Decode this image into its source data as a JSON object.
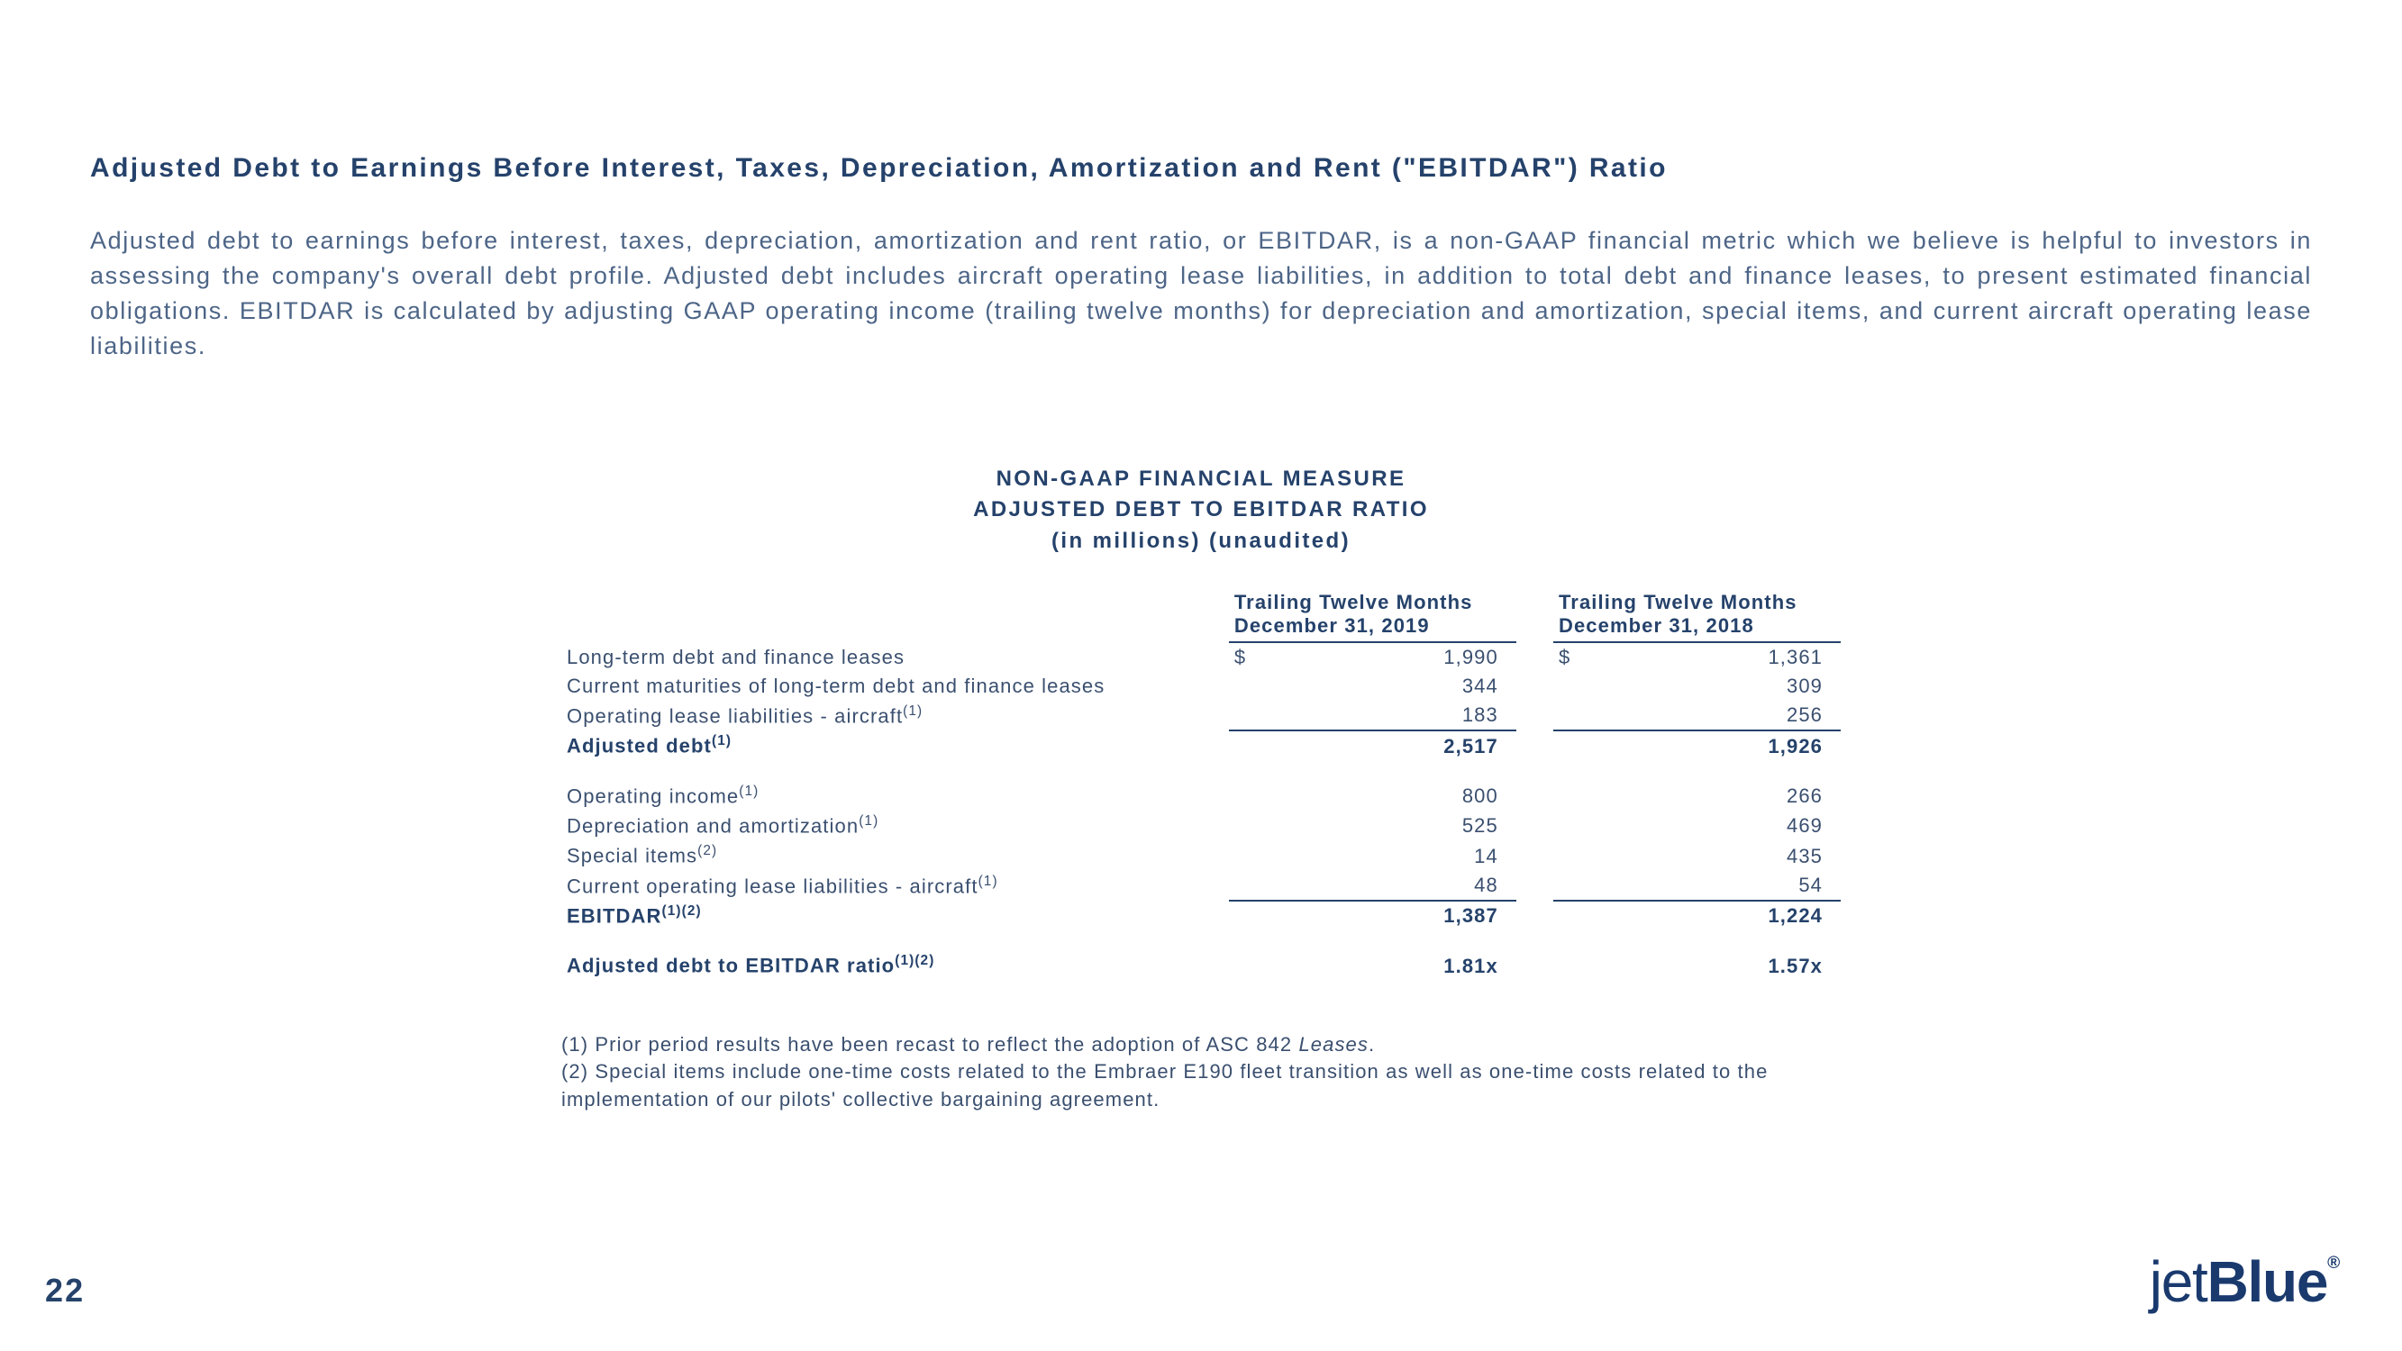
{
  "heading": "Adjusted Debt to Earnings Before Interest, Taxes, Depreciation, Amortization and Rent (\"EBITDAR\") Ratio",
  "paragraph": "Adjusted debt to earnings before interest, taxes, depreciation, amortization and rent ratio, or EBITDAR, is a non-GAAP financial metric which we believe is helpful to investors in assessing the company's overall debt profile. Adjusted debt includes aircraft operating lease liabilities, in addition to total debt and finance leases, to present estimated financial obligations. EBITDAR is calculated by adjusting GAAP operating income (trailing twelve months) for depreciation and amortization, special items, and current aircraft operating lease liabilities.",
  "table_titles": {
    "t1": "NON-GAAP FINANCIAL MEASURE",
    "t2": "ADJUSTED DEBT TO EBITDAR RATIO",
    "t3": "(in millions) (unaudited)"
  },
  "col_headers": {
    "c1a": "Trailing Twelve Months",
    "c1b": "December 31, 2019",
    "c2a": "Trailing Twelve Months",
    "c2b": "December 31, 2018"
  },
  "rows": {
    "r1": {
      "label": "Long-term debt and finance leases",
      "sup": "",
      "sym": "$",
      "v1": "1,990",
      "v2": "1,361"
    },
    "r2": {
      "label": "Current maturities of long-term debt and finance leases",
      "sup": "",
      "sym": "",
      "v1": "344",
      "v2": "309"
    },
    "r3": {
      "label": "Operating lease liabilities - aircraft",
      "sup": "(1)",
      "sym": "",
      "v1": "183",
      "v2": "256"
    },
    "r4": {
      "label": "Adjusted debt",
      "sup": "(1)",
      "sym": "",
      "v1": "2,517",
      "v2": "1,926"
    },
    "r5": {
      "label": "Operating income",
      "sup": "(1)",
      "sym": "",
      "v1": "800",
      "v2": "266"
    },
    "r6": {
      "label": "Depreciation and amortization",
      "sup": "(1)",
      "sym": "",
      "v1": "525",
      "v2": "469"
    },
    "r7": {
      "label": "Special items",
      "sup": "(2)",
      "sym": "",
      "v1": "14",
      "v2": "435"
    },
    "r8": {
      "label": "Current operating lease liabilities - aircraft",
      "sup": "(1)",
      "sym": "",
      "v1": "48",
      "v2": "54"
    },
    "r9": {
      "label": "EBITDAR",
      "sup": "(1)(2)",
      "sym": "",
      "v1": "1,387",
      "v2": "1,224"
    },
    "r10": {
      "label": "Adjusted debt to EBITDAR ratio",
      "sup": "(1)(2)",
      "sym": "",
      "v1": "1.81x",
      "v2": "1.57x"
    }
  },
  "footnotes": {
    "f1a": "(1) Prior period results have been recast to reflect the adoption of ASC 842 ",
    "f1b": "Leases",
    "f1c": ".",
    "f2": "(2) Special items include one-time costs related to the Embraer E190 fleet transition as well as one-time costs related to the implementation of our pilots' collective bargaining agreement."
  },
  "page_number": "22",
  "logo": {
    "part1": "jet",
    "part2": "Blue"
  }
}
